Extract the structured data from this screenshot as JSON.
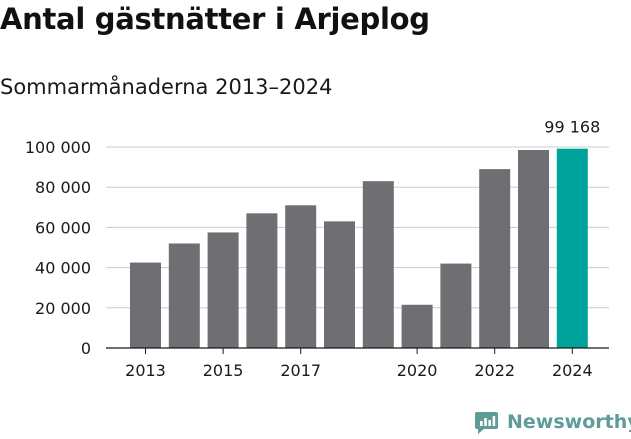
{
  "header": {
    "title": "Antal gästnätter i Arjeplog",
    "subtitle": "Sommarmånaderna 2013–2024"
  },
  "brand": {
    "name": "Newsworthy",
    "icon": "newsworthy-logo-icon",
    "color": "#5e9c98"
  },
  "colors": {
    "bar": "#6f6e73",
    "highlight": "#00a39a",
    "grid": "#cccccc",
    "axis": "#1a1a1a"
  },
  "chart_data": {
    "type": "bar",
    "title": "Antal gästnätter i Arjeplog",
    "subtitle": "Sommarmånaderna 2013–2024",
    "categories": [
      "2013",
      "2014",
      "2015",
      "2016",
      "2017",
      "2018",
      "2019",
      "2020",
      "2021",
      "2022",
      "2023",
      "2024"
    ],
    "values": [
      42500,
      52000,
      57500,
      67000,
      71000,
      63000,
      83000,
      21500,
      42000,
      89000,
      98500,
      99168
    ],
    "highlight_index": 11,
    "value_labels": [
      "",
      "",
      "",
      "",
      "",
      "",
      "",
      "",
      "",
      "",
      "",
      "99 168"
    ],
    "x_tick_labels": [
      "2013",
      "",
      "2015",
      "",
      "2017",
      "",
      "",
      "2020",
      "",
      "2022",
      "",
      "2024"
    ],
    "y_ticks": [
      0,
      20000,
      40000,
      60000,
      80000,
      100000
    ],
    "y_tick_labels": [
      "0",
      "20 000",
      "40 000",
      "60 000",
      "80 000",
      "100 000"
    ],
    "ylim": [
      0,
      100000
    ],
    "xlabel": "",
    "ylabel": "",
    "grid": true,
    "legend": "none"
  }
}
